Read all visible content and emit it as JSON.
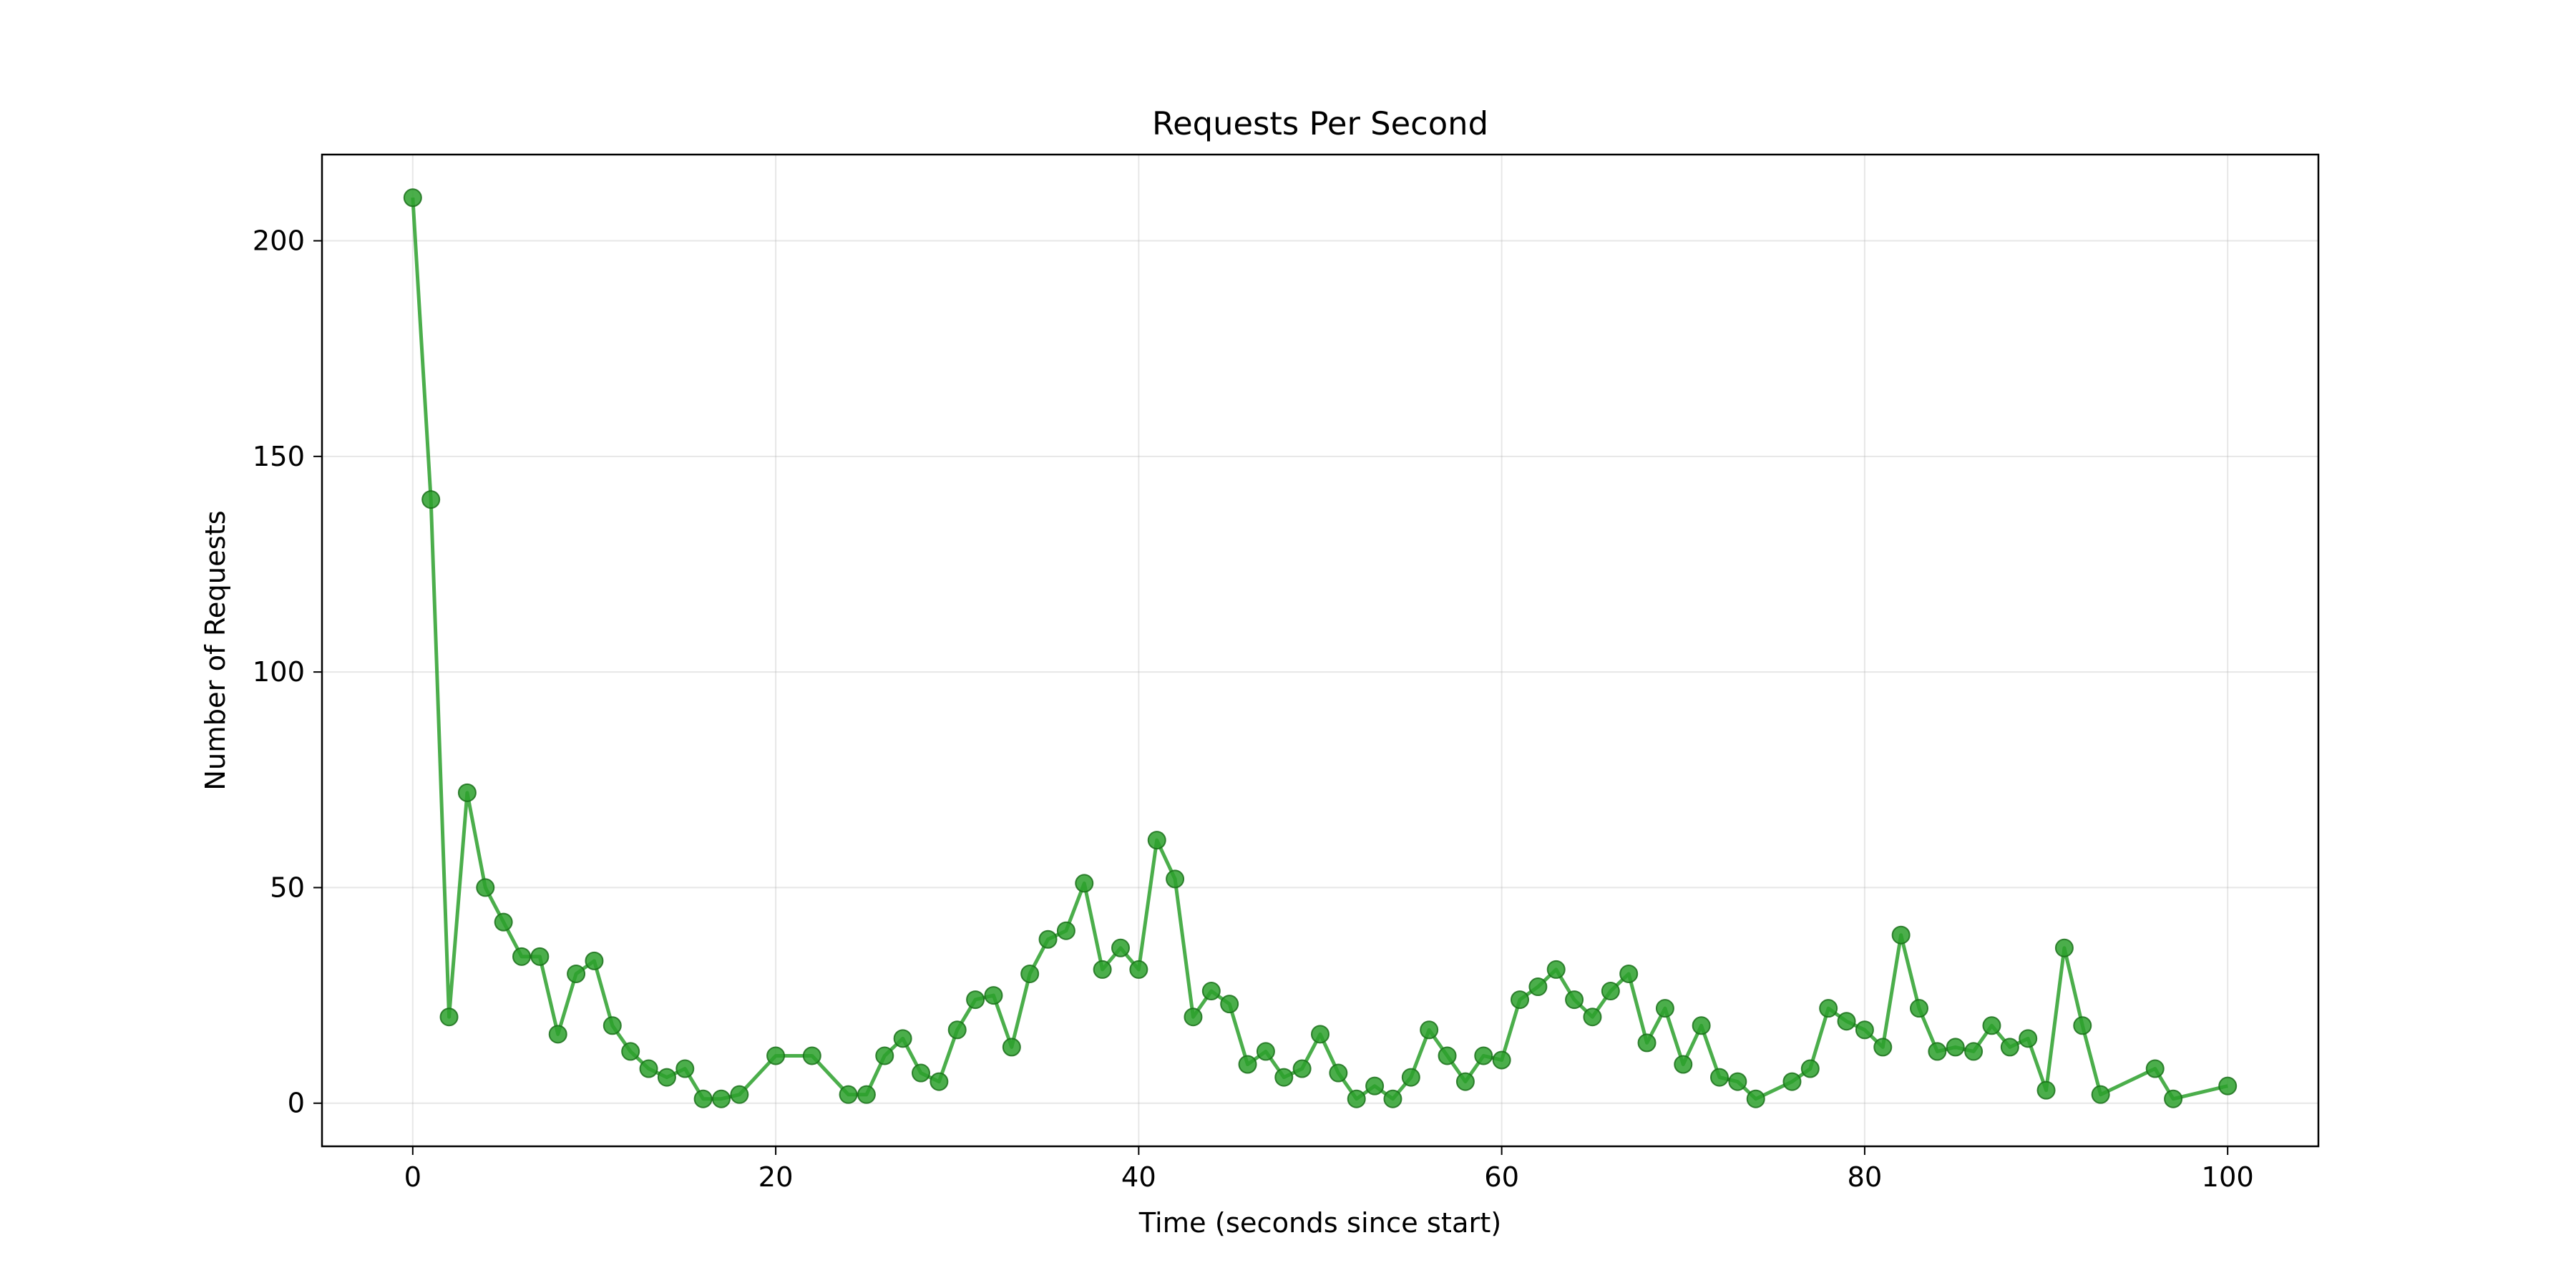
{
  "chart_data": {
    "type": "line",
    "title": "Requests Per Second",
    "xlabel": "Time (seconds since start)",
    "ylabel": "Number of Requests",
    "xlim": [
      -5,
      105
    ],
    "ylim": [
      -10,
      220
    ],
    "xticks": [
      0,
      20,
      40,
      60,
      80,
      100
    ],
    "yticks": [
      0,
      50,
      100,
      150,
      200
    ],
    "grid": true,
    "color": "#2ca02c",
    "series": [
      {
        "points": [
          [
            0,
            210
          ],
          [
            1,
            140
          ],
          [
            2,
            20
          ],
          [
            3,
            72
          ],
          [
            4,
            50
          ],
          [
            5,
            42
          ],
          [
            6,
            34
          ],
          [
            7,
            34
          ],
          [
            8,
            16
          ],
          [
            9,
            30
          ],
          [
            10,
            33
          ],
          [
            11,
            18
          ],
          [
            12,
            12
          ],
          [
            13,
            8
          ],
          [
            14,
            6
          ],
          [
            15,
            8
          ],
          [
            16,
            1
          ],
          [
            17,
            1
          ],
          [
            18,
            2
          ],
          [
            20,
            11
          ],
          [
            22,
            11
          ],
          [
            24,
            2
          ],
          [
            25,
            2
          ],
          [
            26,
            11
          ],
          [
            27,
            15
          ],
          [
            28,
            7
          ],
          [
            29,
            5
          ],
          [
            30,
            17
          ],
          [
            31,
            24
          ],
          [
            32,
            25
          ],
          [
            33,
            13
          ],
          [
            34,
            30
          ],
          [
            35,
            38
          ],
          [
            36,
            40
          ],
          [
            37,
            51
          ],
          [
            38,
            31
          ],
          [
            39,
            36
          ],
          [
            40,
            31
          ],
          [
            41,
            61
          ],
          [
            42,
            52
          ],
          [
            43,
            20
          ],
          [
            44,
            26
          ],
          [
            45,
            23
          ],
          [
            46,
            9
          ],
          [
            47,
            12
          ],
          [
            48,
            6
          ],
          [
            49,
            8
          ],
          [
            50,
            16
          ],
          [
            51,
            7
          ],
          [
            52,
            1
          ],
          [
            53,
            4
          ],
          [
            54,
            1
          ],
          [
            55,
            6
          ],
          [
            56,
            17
          ],
          [
            57,
            11
          ],
          [
            58,
            5
          ],
          [
            59,
            11
          ],
          [
            60,
            10
          ],
          [
            61,
            24
          ],
          [
            62,
            27
          ],
          [
            63,
            31
          ],
          [
            64,
            24
          ],
          [
            65,
            20
          ],
          [
            66,
            26
          ],
          [
            67,
            30
          ],
          [
            68,
            14
          ],
          [
            69,
            22
          ],
          [
            70,
            9
          ],
          [
            71,
            18
          ],
          [
            72,
            6
          ],
          [
            73,
            5
          ],
          [
            74,
            1
          ],
          [
            76,
            5
          ],
          [
            77,
            8
          ],
          [
            78,
            22
          ],
          [
            79,
            19
          ],
          [
            80,
            17
          ],
          [
            81,
            13
          ],
          [
            82,
            39
          ],
          [
            83,
            22
          ],
          [
            84,
            12
          ],
          [
            85,
            13
          ],
          [
            86,
            12
          ],
          [
            87,
            18
          ],
          [
            88,
            13
          ],
          [
            89,
            15
          ],
          [
            90,
            3
          ],
          [
            91,
            36
          ],
          [
            92,
            18
          ],
          [
            93,
            2
          ],
          [
            96,
            8
          ],
          [
            97,
            1
          ],
          [
            100,
            4
          ]
        ]
      }
    ]
  }
}
